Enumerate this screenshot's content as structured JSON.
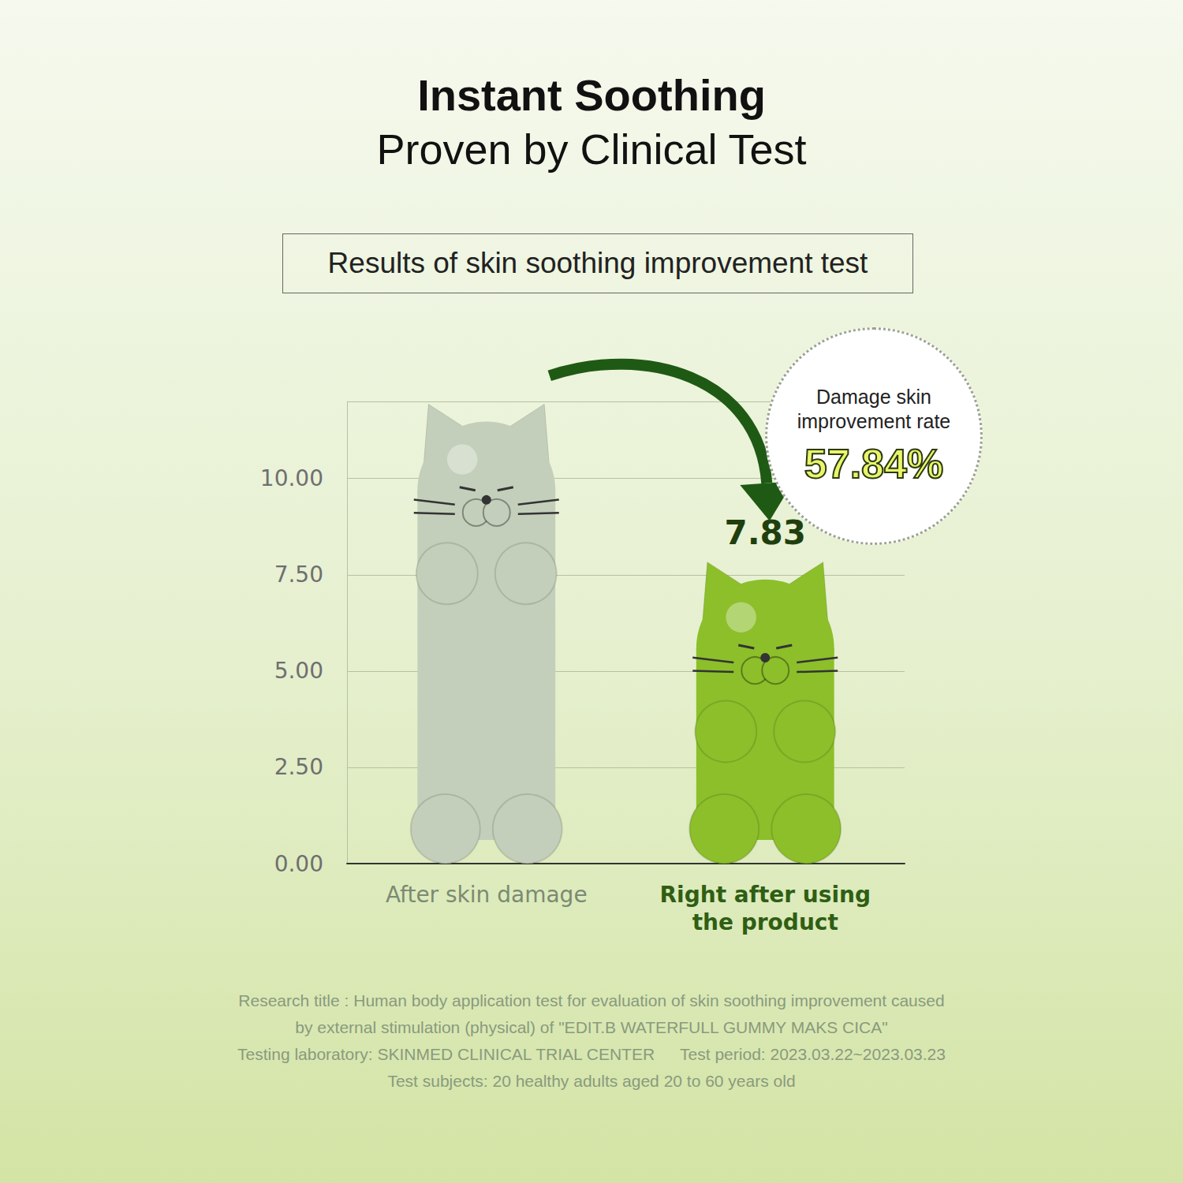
{
  "chart_data": {
    "type": "bar",
    "title": "Instant Soothing",
    "subtitle": "Proven by Clinical Test",
    "chart_label": "Results of skin soothing improvement test",
    "categories": [
      "After skin damage",
      "Right after using the product"
    ],
    "values": [
      11.93,
      7.83
    ],
    "colors": [
      "#c3cfba",
      "#8cbf2a"
    ],
    "ylim": [
      0,
      12
    ],
    "yticks": [
      {
        "value": 0,
        "label": "0.00"
      },
      {
        "value": 2.5,
        "label": "2.50"
      },
      {
        "value": 5,
        "label": "5.00"
      },
      {
        "value": 7.5,
        "label": "7.50"
      },
      {
        "value": 10,
        "label": "10.00"
      }
    ],
    "grid": true,
    "data_labels": true,
    "annotation": {
      "text": "Damage skin improvement rate",
      "rate": "57.84%"
    },
    "notes": [
      [
        "Research title : Human body application test for evaluation of skin soothing improvement caused"
      ],
      [
        "by external stimulation (physical) of \"EDIT.B WATERFULL GUMMY MAKS CICA\""
      ],
      [
        "Testing laboratory: SKINMED CLINICAL TRIAL CENTER",
        "Test period: 2023.03.22~2023.03.23"
      ],
      [
        "Test subjects: 20 healthy adults aged 20 to 60 years old"
      ]
    ]
  }
}
